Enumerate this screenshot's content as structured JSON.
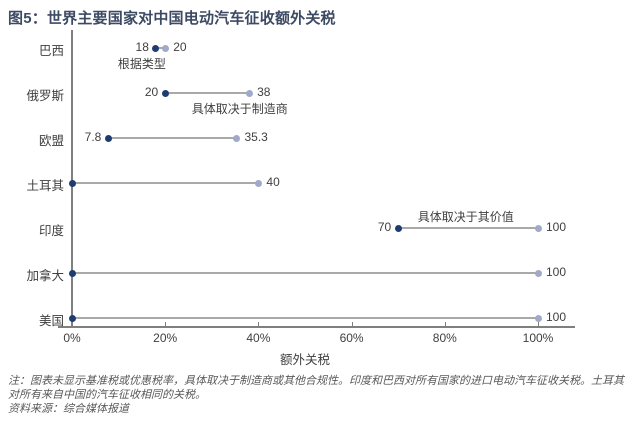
{
  "title": "图5：世界主要国家对中国电动汽车征收额外关税",
  "chart_data": {
    "type": "dumbbell",
    "title": "图5：世界主要国家对中国电动汽车征收额外关税",
    "xlabel": "额外关税",
    "xlim": [
      0,
      100
    ],
    "xticks": [
      0,
      20,
      40,
      60,
      80,
      100
    ],
    "xtick_labels": [
      "0%",
      "20%",
      "40%",
      "60%",
      "80%",
      "100%"
    ],
    "categories": [
      "巴西",
      "俄罗斯",
      "欧盟",
      "土耳其",
      "印度",
      "加拿大",
      "美国"
    ],
    "rows": [
      {
        "category": "巴西",
        "low": 18,
        "high": 20,
        "low_label": "18",
        "high_label": "20",
        "annotation": "根据类型",
        "annotation_pos": "below",
        "annotation_x": 15
      },
      {
        "category": "俄罗斯",
        "low": 20,
        "high": 38,
        "low_label": "20",
        "high_label": "38",
        "annotation": "具体取决于制造商",
        "annotation_pos": "below",
        "annotation_x": 36
      },
      {
        "category": "欧盟",
        "low": 7.8,
        "high": 35.3,
        "low_label": "7.8",
        "high_label": "35.3",
        "annotation": "",
        "annotation_pos": "",
        "annotation_x": 0
      },
      {
        "category": "土耳其",
        "low": 0,
        "high": 40,
        "low_label": "",
        "high_label": "40",
        "annotation": "",
        "annotation_pos": "",
        "annotation_x": 0
      },
      {
        "category": "印度",
        "low": 70,
        "high": 100,
        "low_label": "70",
        "high_label": "100",
        "annotation": "具体取决于其价值",
        "annotation_pos": "above",
        "annotation_x": 84.5
      },
      {
        "category": "加拿大",
        "low": 0,
        "high": 100,
        "low_label": "",
        "high_label": "100",
        "annotation": "",
        "annotation_pos": "",
        "annotation_x": 0
      },
      {
        "category": "美国",
        "low": 0,
        "high": 100,
        "low_label": "",
        "high_label": "100",
        "annotation": "",
        "annotation_pos": "",
        "annotation_x": 0
      }
    ],
    "legend": "off",
    "grid": "off",
    "colors": {
      "low_dot": "#1f3c70",
      "high_dot": "#a0aac8",
      "range_line": "#a9a9a9",
      "axis": "#7f7f7f",
      "text": "#404040",
      "title": "#3d4a63"
    }
  },
  "notes": {
    "note": "注：图表未显示基准税或优惠税率，具体取决于制造商或其他合规性。印度和巴西对所有国家的进口电动汽车征收关税。土耳其对所有来自中国的汽车征收相同的关税。",
    "source": "资料来源：综合媒体报道"
  }
}
